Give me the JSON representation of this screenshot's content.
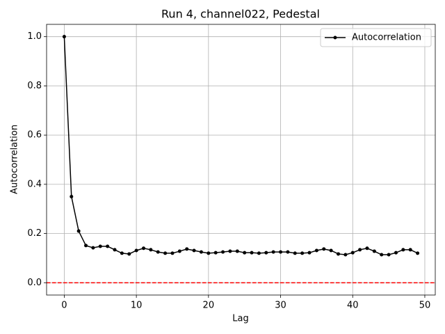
{
  "chart_data": {
    "type": "line",
    "title": "Run 4, channel022, Pedestal",
    "x_label": "Lag",
    "y_label": "Autocorrelation",
    "x": [
      0,
      1,
      2,
      3,
      4,
      5,
      6,
      7,
      8,
      9,
      10,
      11,
      12,
      13,
      14,
      15,
      16,
      17,
      18,
      19,
      20,
      21,
      22,
      23,
      24,
      25,
      26,
      27,
      28,
      29,
      30,
      31,
      32,
      33,
      34,
      35,
      36,
      37,
      38,
      39,
      40,
      41,
      42,
      43,
      44,
      45,
      46,
      47,
      48,
      49
    ],
    "series": [
      {
        "name": "Autocorrelation",
        "color": "#000000",
        "values": [
          1.0,
          0.35,
          0.21,
          0.151,
          0.142,
          0.148,
          0.148,
          0.134,
          0.12,
          0.117,
          0.131,
          0.14,
          0.134,
          0.125,
          0.12,
          0.12,
          0.128,
          0.137,
          0.131,
          0.125,
          0.12,
          0.122,
          0.125,
          0.128,
          0.128,
          0.122,
          0.122,
          0.12,
          0.122,
          0.125,
          0.125,
          0.125,
          0.12,
          0.12,
          0.122,
          0.131,
          0.137,
          0.131,
          0.117,
          0.114,
          0.122,
          0.134,
          0.14,
          0.128,
          0.114,
          0.114,
          0.122,
          0.134,
          0.134,
          0.12
        ]
      }
    ],
    "reference_line": {
      "value": 0,
      "color": "#ff0000"
    },
    "xlim": [
      -2.45,
      51.45
    ],
    "ylim": [
      -0.05,
      1.05
    ],
    "xticks": [
      0,
      10,
      20,
      30,
      40,
      50
    ],
    "yticks": [
      {
        "value": 0,
        "label": "0.0"
      },
      {
        "value": 0.2,
        "label": "0.2"
      },
      {
        "value": 0.4,
        "label": "0.4"
      },
      {
        "value": 0.6,
        "label": "0.6"
      },
      {
        "value": 0.8,
        "label": "0.8"
      },
      {
        "value": 1,
        "label": "1.0"
      }
    ],
    "grid": true,
    "legend": "upper right"
  }
}
